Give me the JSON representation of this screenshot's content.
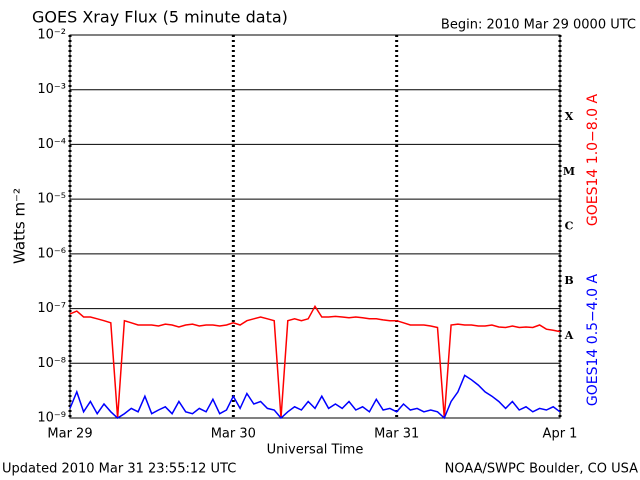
{
  "chart_data": {
    "type": "line",
    "title": "GOES Xray Flux (5 minute data)",
    "subtitle": "Begin:  2010 Mar 29 0000 UTC",
    "x_label": "Universal Time",
    "y_label": "Watts m⁻²",
    "footer_left": "Updated 2010 Mar 31 23:55:12 UTC",
    "footer_right": "NOAA/SWPC Boulder, CO USA",
    "class_labels": [
      "X",
      "M",
      "C",
      "B",
      "A"
    ],
    "yscale": "log",
    "grid": true,
    "xlim": [
      0,
      72
    ],
    "xticks": [
      {
        "value": 0,
        "label": "Mar 29"
      },
      {
        "value": 24,
        "label": "Mar 30"
      },
      {
        "value": 48,
        "label": "Mar 31"
      },
      {
        "value": 72,
        "label": "Apr 1"
      }
    ],
    "ylim": [
      1e-09,
      0.01
    ],
    "yticks": [
      {
        "value": 1e-09,
        "label": "10⁻⁹"
      },
      {
        "value": 1e-08,
        "label": "10⁻⁸"
      },
      {
        "value": 1e-07,
        "label": "10⁻⁷"
      },
      {
        "value": 1e-06,
        "label": "10⁻⁶"
      },
      {
        "value": 1e-05,
        "label": "10⁻⁵"
      },
      {
        "value": 0.0001,
        "label": "10⁻⁴"
      },
      {
        "value": 0.001,
        "label": "10⁻³"
      },
      {
        "value": 0.01,
        "label": "10⁻²"
      }
    ],
    "x": [
      0,
      1,
      2,
      3,
      4,
      5,
      6,
      7,
      8,
      9,
      10,
      11,
      12,
      13,
      14,
      15,
      16,
      17,
      18,
      19,
      20,
      21,
      22,
      23,
      24,
      25,
      26,
      27,
      28,
      29,
      30,
      31,
      32,
      33,
      34,
      35,
      36,
      37,
      38,
      39,
      40,
      41,
      42,
      43,
      44,
      45,
      46,
      47,
      48,
      49,
      50,
      51,
      52,
      53,
      54,
      55,
      56,
      57,
      58,
      59,
      60,
      61,
      62,
      63,
      64,
      65,
      66,
      67,
      68,
      69,
      70,
      71,
      72
    ],
    "series": [
      {
        "name": "GOES14 1.0−8.0 A",
        "color": "#ff0000",
        "values": [
          8e-08,
          9e-08,
          7e-08,
          7e-08,
          6.5e-08,
          6e-08,
          5.5e-08,
          1e-09,
          6e-08,
          5.5e-08,
          5e-08,
          5e-08,
          5e-08,
          4.8e-08,
          5.2e-08,
          5e-08,
          4.6e-08,
          5e-08,
          5.2e-08,
          4.8e-08,
          5e-08,
          5e-08,
          4.8e-08,
          5e-08,
          5.5e-08,
          5e-08,
          6e-08,
          6.5e-08,
          7e-08,
          6.5e-08,
          6e-08,
          1e-09,
          6e-08,
          6.5e-08,
          6e-08,
          6.5e-08,
          1.1e-07,
          7e-08,
          7e-08,
          7.2e-08,
          7e-08,
          6.8e-08,
          7e-08,
          6.8e-08,
          6.5e-08,
          6.5e-08,
          6.2e-08,
          6e-08,
          6e-08,
          5.5e-08,
          5e-08,
          5e-08,
          5e-08,
          4.8e-08,
          4.5e-08,
          1e-09,
          5e-08,
          5.2e-08,
          5e-08,
          5e-08,
          4.8e-08,
          4.8e-08,
          5e-08,
          4.6e-08,
          4.5e-08,
          4.8e-08,
          4.5e-08,
          4.6e-08,
          4.5e-08,
          5e-08,
          4.2e-08,
          4e-08,
          3.8e-08
        ]
      },
      {
        "name": "GOES14 0.5−4.0 A",
        "color": "#0000ff",
        "values": [
          1.5e-09,
          3e-09,
          1.3e-09,
          2e-09,
          1.2e-09,
          1.8e-09,
          1.3e-09,
          1e-09,
          1.2e-09,
          1.5e-09,
          1.3e-09,
          2.5e-09,
          1.2e-09,
          1.4e-09,
          1.6e-09,
          1.2e-09,
          2e-09,
          1.3e-09,
          1.2e-09,
          1.5e-09,
          1.3e-09,
          2.2e-09,
          1.2e-09,
          1.4e-09,
          2.5e-09,
          1.5e-09,
          2.8e-09,
          1.8e-09,
          2e-09,
          1.5e-09,
          1.4e-09,
          1e-09,
          1.3e-09,
          1.6e-09,
          1.4e-09,
          2e-09,
          1.5e-09,
          2.5e-09,
          1.5e-09,
          1.8e-09,
          1.5e-09,
          2e-09,
          1.4e-09,
          1.6e-09,
          1.3e-09,
          2.2e-09,
          1.4e-09,
          1.5e-09,
          1.3e-09,
          1.8e-09,
          1.4e-09,
          1.5e-09,
          1.3e-09,
          1.4e-09,
          1.3e-09,
          1e-09,
          2e-09,
          3e-09,
          6e-09,
          5e-09,
          4e-09,
          3e-09,
          2.5e-09,
          2e-09,
          1.5e-09,
          2e-09,
          1.4e-09,
          1.6e-09,
          1.3e-09,
          1.5e-09,
          1.4e-09,
          1.6e-09,
          1.3e-09
        ]
      }
    ]
  }
}
